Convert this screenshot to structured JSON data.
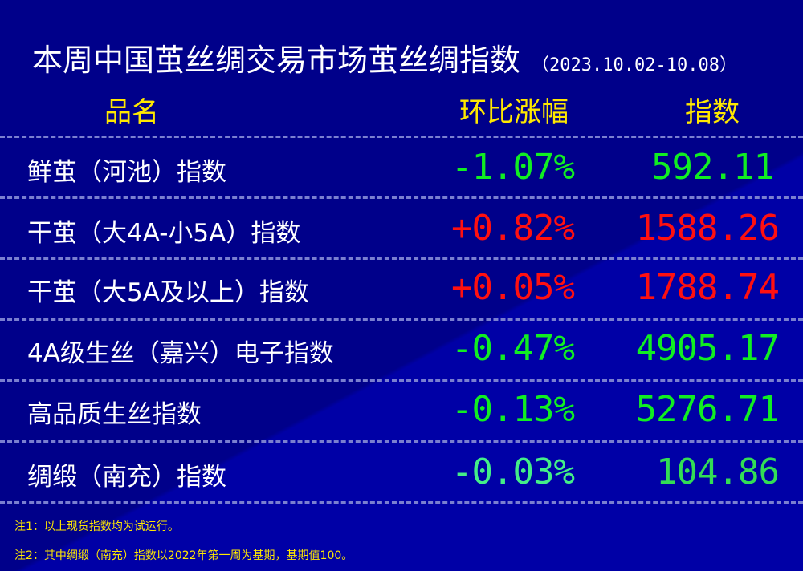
{
  "title": "本周中国茧丝绸交易市场茧丝绸指数",
  "date_range": "（2023.10.02-10.08）",
  "headers": {
    "name": "品名",
    "change": "环比涨幅",
    "index": "指数"
  },
  "colors": {
    "up": "#ff1010",
    "down": "#11ee22",
    "down_alt": "#44ee88"
  },
  "rows": [
    {
      "name": "鲜茧（河池）指数",
      "change": "-1.07%",
      "value": "592.11",
      "direction": "down"
    },
    {
      "name": "干茧（大4A-小5A）指数",
      "change": "+0.82%",
      "value": "1588.26",
      "direction": "up"
    },
    {
      "name": "干茧（大5A及以上）指数",
      "change": "+0.05%",
      "value": "1788.74",
      "direction": "up"
    },
    {
      "name": "4A级生丝（嘉兴）电子指数",
      "change": "-0.47%",
      "value": "4905.17",
      "direction": "down"
    },
    {
      "name": "高品质生丝指数",
      "change": "-0.13%",
      "value": "5276.71",
      "direction": "down"
    },
    {
      "name": "绸缎（南充）指数",
      "change": "-0.03%",
      "value": "104.86",
      "direction": "down"
    }
  ],
  "notes": [
    "注1：以上现货指数均为试运行。",
    "注2：其中绸缎（南充）指数以2022年第一周为基期，基期值100。"
  ]
}
